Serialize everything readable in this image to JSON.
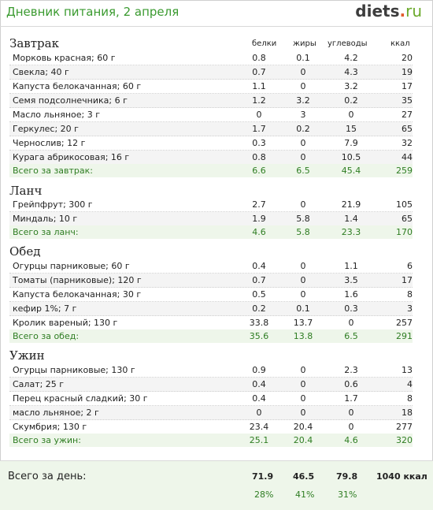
{
  "header": {
    "title": "Дневник питания, 2 апреля",
    "logo_main": "diets",
    "logo_dot": ".",
    "logo_tld": "ru"
  },
  "columns": {
    "protein": "белки",
    "fat": "жиры",
    "carbs": "углеводы",
    "kcal": "ккал"
  },
  "meals": [
    {
      "title": "Завтрак",
      "rows": [
        {
          "name": "Морковь красная; 60 г",
          "p": "0.8",
          "f": "0.1",
          "c": "4.2",
          "k": "20"
        },
        {
          "name": "Свекла; 40 г",
          "p": "0.7",
          "f": "0",
          "c": "4.3",
          "k": "19"
        },
        {
          "name": "Капуста белокачанная; 60 г",
          "p": "1.1",
          "f": "0",
          "c": "3.2",
          "k": "17"
        },
        {
          "name": "Семя подсолнечника; 6 г",
          "p": "1.2",
          "f": "3.2",
          "c": "0.2",
          "k": "35"
        },
        {
          "name": "Масло льняное; 3 г",
          "p": "0",
          "f": "3",
          "c": "0",
          "k": "27"
        },
        {
          "name": "Геркулес; 20 г",
          "p": "1.7",
          "f": "0.2",
          "c": "15",
          "k": "65"
        },
        {
          "name": "Чернослив; 12 г",
          "p": "0.3",
          "f": "0",
          "c": "7.9",
          "k": "32"
        },
        {
          "name": "Курага абрикосовая; 16 г",
          "p": "0.8",
          "f": "0",
          "c": "10.5",
          "k": "44"
        }
      ],
      "total": {
        "name": "Всего за завтрак:",
        "p": "6.6",
        "f": "6.5",
        "c": "45.4",
        "k": "259"
      }
    },
    {
      "title": "Ланч",
      "rows": [
        {
          "name": "Грейпфрут; 300 г",
          "p": "2.7",
          "f": "0",
          "c": "21.9",
          "k": "105"
        },
        {
          "name": "Миндаль; 10 г",
          "p": "1.9",
          "f": "5.8",
          "c": "1.4",
          "k": "65"
        }
      ],
      "total": {
        "name": "Всего за ланч:",
        "p": "4.6",
        "f": "5.8",
        "c": "23.3",
        "k": "170"
      }
    },
    {
      "title": "Обед",
      "rows": [
        {
          "name": "Огурцы парниковые; 60 г",
          "p": "0.4",
          "f": "0",
          "c": "1.1",
          "k": "6"
        },
        {
          "name": "Томаты (парниковые); 120 г",
          "p": "0.7",
          "f": "0",
          "c": "3.5",
          "k": "17"
        },
        {
          "name": "Капуста белокачанная; 30 г",
          "p": "0.5",
          "f": "0",
          "c": "1.6",
          "k": "8"
        },
        {
          "name": "кефир 1%; 7 г",
          "p": "0.2",
          "f": "0.1",
          "c": "0.3",
          "k": "3"
        },
        {
          "name": "Кролик вареный; 130 г",
          "p": "33.8",
          "f": "13.7",
          "c": "0",
          "k": "257"
        }
      ],
      "total": {
        "name": "Всего за обед:",
        "p": "35.6",
        "f": "13.8",
        "c": "6.5",
        "k": "291"
      }
    },
    {
      "title": "Ужин",
      "rows": [
        {
          "name": "Огурцы парниковые; 130 г",
          "p": "0.9",
          "f": "0",
          "c": "2.3",
          "k": "13"
        },
        {
          "name": "Салат; 25 г",
          "p": "0.4",
          "f": "0",
          "c": "0.6",
          "k": "4"
        },
        {
          "name": "Перец красный сладкий; 30 г",
          "p": "0.4",
          "f": "0",
          "c": "1.7",
          "k": "8"
        },
        {
          "name": "масло льняное; 2 г",
          "p": "0",
          "f": "0",
          "c": "0",
          "k": "18"
        },
        {
          "name": "Скумбрия; 130 г",
          "p": "23.4",
          "f": "20.4",
          "c": "0",
          "k": "277"
        }
      ],
      "total": {
        "name": "Всего за ужин:",
        "p": "25.1",
        "f": "20.4",
        "c": "4.6",
        "k": "320"
      }
    }
  ],
  "day": {
    "label": "Всего за день:",
    "p": "71.9",
    "f": "46.5",
    "c": "79.8",
    "k": "1040 ккал",
    "p_pct": "28%",
    "f_pct": "41%",
    "c_pct": "31%"
  }
}
